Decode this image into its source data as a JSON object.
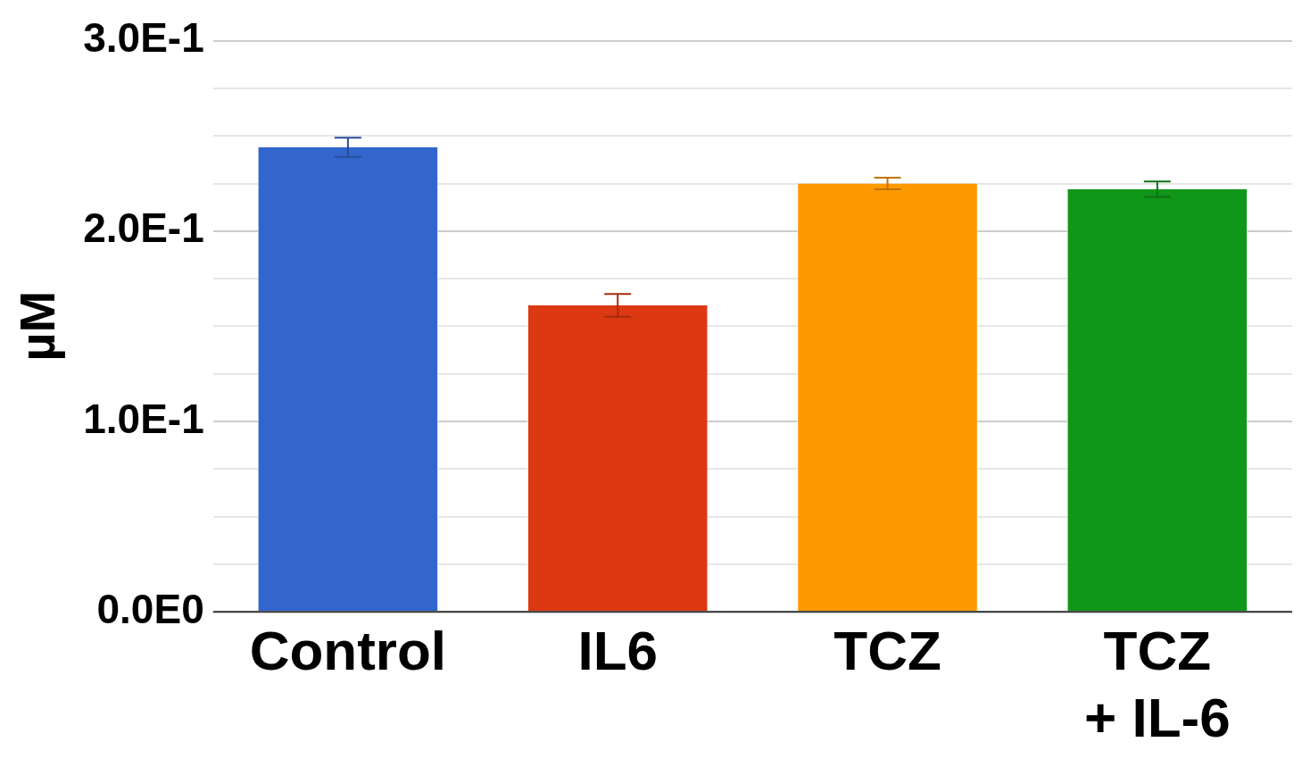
{
  "chart_data": {
    "type": "bar",
    "ylabel": "µM",
    "categories": [
      "Control",
      "IL6",
      "TCZ",
      "TCZ + IL-6"
    ],
    "values": [
      0.244,
      0.161,
      0.225,
      0.222
    ],
    "colors": [
      "#3366cc",
      "#dc3912",
      "#ff9900",
      "#109618"
    ],
    "errors": [
      0.005,
      0.006,
      0.003,
      0.004
    ],
    "ylim": [
      0,
      0.3
    ],
    "yticks": [
      {
        "value": 0,
        "label": "0.0E0"
      },
      {
        "value": 0.025,
        "label": null
      },
      {
        "value": 0.05,
        "label": null
      },
      {
        "value": 0.075,
        "label": null
      },
      {
        "value": 0.1,
        "label": "1.0E-1"
      },
      {
        "value": 0.125,
        "label": null
      },
      {
        "value": 0.15,
        "label": null
      },
      {
        "value": 0.175,
        "label": null
      },
      {
        "value": 0.2,
        "label": "2.0E-1"
      },
      {
        "value": 0.225,
        "label": null
      },
      {
        "value": 0.25,
        "label": null
      },
      {
        "value": 0.275,
        "label": null
      },
      {
        "value": 0.3,
        "label": "3.0E-1"
      }
    ],
    "grid": "y",
    "legend": false
  }
}
